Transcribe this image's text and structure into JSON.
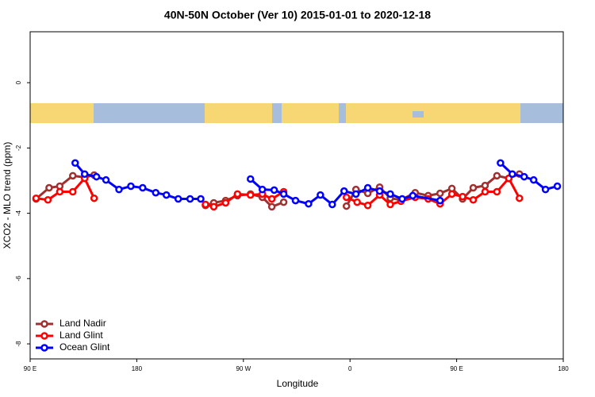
{
  "chart_data": {
    "type": "line",
    "title": "40N-50N October (Ver 10)   2015-01-01 to 2020-12-18",
    "xlabel": "Longitude",
    "ylabel": "XCO2 - MLO trend (ppm)",
    "xlim": [
      90,
      540
    ],
    "ylim": [
      -8.46,
      1.56
    ],
    "xticks": [
      {
        "value": 90,
        "label": "90 E"
      },
      180,
      {
        "value": 270,
        "label": "90 W"
      },
      {
        "value": 360,
        "label": "0"
      },
      {
        "value": 450,
        "label": "90 E"
      },
      {
        "value": 540,
        "label": "180"
      }
    ],
    "yticks": [
      0,
      -2,
      -4,
      -6,
      -8
    ],
    "legend": "bottom-left",
    "series": [
      {
        "name": "Land Nadir",
        "color": "#a03030",
        "x": [
          95,
          106,
          115,
          126,
          136,
          144,
          190,
          238,
          245,
          255,
          265,
          276,
          286,
          294,
          304,
          330,
          357,
          365,
          375,
          385,
          394,
          403,
          415,
          426,
          436,
          446,
          455,
          464,
          474,
          484,
          494,
          503
        ],
        "values": [
          -3.56,
          -3.22,
          -3.17,
          -2.85,
          -2.9,
          -2.83,
          null,
          -3.76,
          -3.68,
          -3.61,
          -3.46,
          -3.41,
          -3.51,
          -3.8,
          -3.66,
          null,
          -3.78,
          -3.27,
          -3.39,
          -3.2,
          -3.54,
          -3.59,
          -3.37,
          -3.46,
          -3.39,
          -3.24,
          -3.56,
          -3.22,
          -3.15,
          -2.85,
          -2.93,
          -2.8
        ]
      },
      {
        "name": "Land Glint",
        "color": "#ff0000",
        "x": [
          95,
          105,
          115,
          126,
          136,
          144,
          190,
          238,
          245,
          255,
          265,
          276,
          286,
          294,
          304,
          330,
          357,
          366,
          375,
          385,
          394,
          403,
          415,
          426,
          436,
          446,
          455,
          464,
          474,
          484,
          494,
          503
        ],
        "values": [
          -3.54,
          -3.59,
          -3.34,
          -3.34,
          -2.93,
          -3.54,
          null,
          -3.73,
          -3.8,
          -3.68,
          -3.41,
          -3.44,
          -3.41,
          -3.56,
          -3.34,
          null,
          -3.51,
          -3.66,
          -3.76,
          -3.44,
          -3.73,
          -3.63,
          -3.51,
          -3.56,
          -3.71,
          -3.41,
          -3.49,
          -3.59,
          -3.34,
          -3.34,
          -2.93,
          -3.54
        ]
      },
      {
        "name": "Ocean Glint",
        "color": "#0000ff",
        "x": [
          128,
          136,
          146,
          154,
          165,
          175,
          185,
          196,
          205,
          215,
          225,
          234,
          255,
          276,
          286,
          296,
          304,
          314,
          325,
          335,
          345,
          355,
          365,
          375,
          385,
          394,
          404,
          413,
          436,
          462,
          487,
          497,
          507,
          515,
          525,
          535
        ],
        "values": [
          -2.46,
          -2.8,
          -2.88,
          -2.98,
          -3.27,
          -3.17,
          -3.22,
          -3.37,
          -3.44,
          -3.56,
          -3.56,
          -3.56,
          null,
          -2.95,
          -3.27,
          -3.29,
          -3.41,
          -3.61,
          -3.71,
          -3.44,
          -3.73,
          -3.32,
          -3.41,
          -3.22,
          -3.32,
          -3.41,
          -3.56,
          -3.46,
          -3.61,
          null,
          -2.46,
          -2.8,
          -2.88,
          -2.98,
          -3.27,
          -3.17
        ]
      }
    ]
  }
}
